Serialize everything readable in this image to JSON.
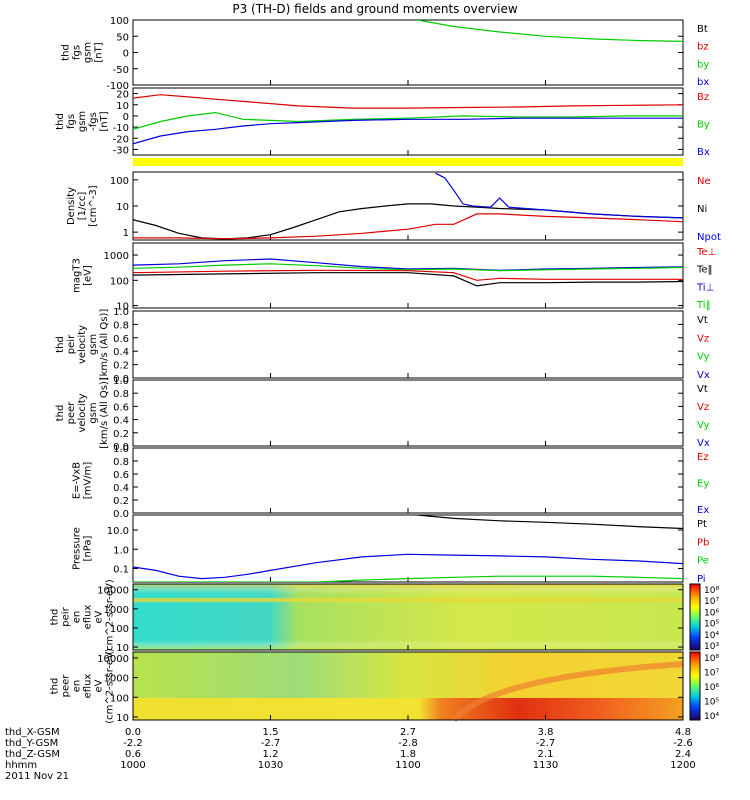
{
  "title": "P3 (TH-D) fields and ground moments overview",
  "date_label": "2011 Nov 21",
  "colorbar_tick_labels": [
    "10⁸",
    "10⁷",
    "10⁶",
    "10⁵",
    "10⁴",
    "10³"
  ],
  "colorbar2_tick_labels": [
    "10⁸",
    "10⁷",
    "10⁶",
    "10⁵",
    "10⁴"
  ],
  "orbit_rows": [
    {
      "label": "thd_X-GSM",
      "values": [
        "0.0",
        "1.5",
        "2.7",
        "3.8",
        "4.8"
      ]
    },
    {
      "label": "thd_Y-GSM",
      "values": [
        "-2.2",
        "-2.7",
        "-2.8",
        "-2.7",
        "-2.6"
      ]
    },
    {
      "label": "thd_Z-GSM",
      "values": [
        "0.6",
        "1.2",
        "1.8",
        "2.1",
        "2.4"
      ]
    },
    {
      "label": "hhmm",
      "values": [
        "1000",
        "1030",
        "1100",
        "1130",
        "1200"
      ]
    }
  ],
  "chart_data": [
    {
      "type": "line",
      "id": "fgs",
      "ylabel_lines": [
        "thd",
        "fgs",
        "gsm",
        "[nT]"
      ],
      "ylim": [
        -100,
        100
      ],
      "yscale": "linear",
      "tick_labels": [
        "100",
        "50",
        "0",
        "-50",
        "-100"
      ],
      "tick_values": [
        100,
        50,
        0,
        -50,
        -100
      ],
      "legend": [
        {
          "name": "Bt",
          "color": "#000000"
        },
        {
          "name": "bz",
          "color": "#dd0000"
        },
        {
          "name": "by",
          "color": "#00cc00"
        },
        {
          "name": "bx",
          "color": "#0000dd"
        }
      ],
      "series": [
        {
          "name": "by",
          "color": "#00cc00",
          "x": [
            62,
            70,
            80,
            90,
            100,
            110,
            120
          ],
          "y": [
            100,
            80,
            63,
            50,
            42,
            37,
            34
          ]
        }
      ]
    },
    {
      "type": "line",
      "id": "fgs-zoom",
      "ylabel_lines": [
        "thd",
        "fgs",
        "gsm",
        "-fgs",
        "[nT]"
      ],
      "ylim": [
        -35,
        25
      ],
      "yscale": "linear",
      "tick_labels": [
        "20",
        "10",
        "0",
        "-10",
        "-20",
        "-30"
      ],
      "tick_values": [
        20,
        10,
        0,
        -10,
        -20,
        -30
      ],
      "legend": [
        {
          "name": "Bz",
          "color": "#dd0000"
        },
        {
          "name": "By",
          "color": "#00cc00"
        },
        {
          "name": "Bx",
          "color": "#0000dd"
        }
      ],
      "series": [
        {
          "name": "Bz",
          "color": "#dd0000",
          "x": [
            0,
            6,
            12,
            18,
            24,
            30,
            36,
            48,
            60,
            72,
            84,
            96,
            108,
            120
          ],
          "y": [
            16,
            19,
            17,
            15,
            13,
            11,
            9,
            7,
            7,
            7.5,
            8,
            9,
            9.5,
            10
          ]
        },
        {
          "name": "By",
          "color": "#00cc00",
          "x": [
            0,
            6,
            12,
            18,
            24,
            30,
            36,
            48,
            60,
            72,
            84,
            96,
            108,
            120
          ],
          "y": [
            -12,
            -5,
            0,
            3,
            -3,
            -4,
            -5,
            -3,
            -2,
            0,
            -1,
            -1,
            0,
            0
          ]
        },
        {
          "name": "Bx",
          "color": "#0000dd",
          "x": [
            0,
            6,
            12,
            18,
            24,
            30,
            36,
            48,
            60,
            72,
            84,
            96,
            108,
            120
          ],
          "y": [
            -25,
            -18,
            -14,
            -12,
            -9,
            -7,
            -6,
            -4,
            -3,
            -3,
            -2,
            -2,
            -2,
            -2
          ]
        }
      ]
    },
    {
      "type": "line",
      "id": "density",
      "ylabel_lines": [
        "Density",
        "[1/cc]",
        "[cm^-3]"
      ],
      "ylim": [
        0.5,
        200
      ],
      "yscale": "log",
      "tick_labels": [
        "100",
        "10",
        "1"
      ],
      "tick_values": [
        100,
        10,
        1
      ],
      "legend": [
        {
          "name": "Ne",
          "color": "#dd0000"
        },
        {
          "name": "Ni",
          "color": "#000000"
        },
        {
          "name": "Npot",
          "color": "#0000dd"
        }
      ],
      "series": [
        {
          "name": "Ni",
          "color": "#000000",
          "x": [
            0,
            5,
            10,
            15,
            20,
            25,
            30,
            35,
            40,
            45,
            50,
            55,
            60,
            65,
            70,
            75,
            80,
            90,
            100,
            110,
            120
          ],
          "y": [
            3,
            1.8,
            0.9,
            0.6,
            0.55,
            0.6,
            0.8,
            1.5,
            3,
            6,
            8,
            10,
            12,
            12,
            10,
            9,
            8,
            7,
            5,
            4,
            3.5
          ]
        },
        {
          "name": "Ne",
          "color": "#dd0000",
          "x": [
            0,
            10,
            20,
            30,
            40,
            50,
            60,
            66,
            70,
            75,
            80,
            90,
            100,
            110,
            120
          ],
          "y": [
            0.6,
            0.6,
            0.55,
            0.6,
            0.7,
            0.9,
            1.3,
            2,
            2,
            5,
            5,
            4,
            3.5,
            3,
            2.5
          ]
        },
        {
          "name": "Npot",
          "color": "#0000dd",
          "x": [
            66,
            68,
            70,
            72,
            74,
            78,
            80,
            82,
            90,
            100,
            110,
            120
          ],
          "y": [
            180,
            120,
            40,
            12,
            10,
            9,
            20,
            9,
            7,
            5,
            4,
            3.5
          ]
        }
      ]
    },
    {
      "type": "line",
      "id": "temperature",
      "ylabel_lines": [
        "magT3",
        "[eV]"
      ],
      "ylim": [
        8,
        3000
      ],
      "yscale": "log",
      "tick_labels": [
        "1000",
        "100",
        "10"
      ],
      "tick_values": [
        1000,
        100,
        10
      ],
      "legend": [
        {
          "name": "Te⊥",
          "color": "#dd0000"
        },
        {
          "name": "Te‖",
          "color": "#000000"
        },
        {
          "name": "Ti⊥",
          "color": "#0000dd"
        },
        {
          "name": "Ti‖",
          "color": "#00cc00"
        }
      ],
      "series": [
        {
          "name": "Ti⊥",
          "color": "#0000dd",
          "x": [
            0,
            10,
            20,
            30,
            40,
            50,
            60,
            70,
            80,
            90,
            100,
            110,
            120
          ],
          "y": [
            400,
            450,
            600,
            700,
            500,
            350,
            280,
            300,
            250,
            280,
            300,
            320,
            340
          ]
        },
        {
          "name": "Ti‖",
          "color": "#00cc00",
          "x": [
            0,
            10,
            20,
            30,
            40,
            50,
            60,
            70,
            80,
            90,
            100,
            110,
            120
          ],
          "y": [
            300,
            330,
            400,
            450,
            380,
            300,
            260,
            280,
            240,
            260,
            280,
            300,
            320
          ]
        },
        {
          "name": "Te⊥",
          "color": "#dd0000",
          "x": [
            0,
            20,
            40,
            60,
            70,
            75,
            80,
            90,
            100,
            110,
            120
          ],
          "y": [
            200,
            230,
            250,
            240,
            200,
            100,
            120,
            110,
            110,
            110,
            110
          ]
        },
        {
          "name": "Te‖",
          "color": "#000000",
          "x": [
            0,
            20,
            40,
            60,
            70,
            75,
            80,
            90,
            100,
            110,
            120
          ],
          "y": [
            160,
            180,
            200,
            200,
            150,
            60,
            80,
            80,
            85,
            85,
            90
          ]
        }
      ]
    },
    {
      "type": "line",
      "id": "peir-velocity",
      "ylabel_lines": [
        "thd",
        "peir",
        "velocity",
        "gsm",
        "[km/s (All Qs)]"
      ],
      "ylim": [
        0,
        1
      ],
      "yscale": "linear",
      "tick_labels": [
        "1.0",
        "0.8",
        "0.6",
        "0.4",
        "0.2",
        "0.0"
      ],
      "tick_values": [
        1,
        0.8,
        0.6,
        0.4,
        0.2,
        0
      ],
      "legend": [
        {
          "name": "Vt",
          "color": "#000000"
        },
        {
          "name": "Vz",
          "color": "#dd0000"
        },
        {
          "name": "Vy",
          "color": "#00cc00"
        },
        {
          "name": "Vx",
          "color": "#0000dd"
        }
      ],
      "series": []
    },
    {
      "type": "line",
      "id": "peer-velocity",
      "ylabel_lines": [
        "thd",
        "peer",
        "velocity",
        "gsm",
        "[km/s (All Qs)]"
      ],
      "ylim": [
        0,
        1
      ],
      "yscale": "linear",
      "tick_labels": [
        "1.0",
        "0.8",
        "0.6",
        "0.4",
        "0.2",
        "0.0"
      ],
      "tick_values": [
        1,
        0.8,
        0.6,
        0.4,
        0.2,
        0
      ],
      "legend": [
        {
          "name": "Vt",
          "color": "#000000"
        },
        {
          "name": "Vz",
          "color": "#dd0000"
        },
        {
          "name": "Vy",
          "color": "#00cc00"
        },
        {
          "name": "Vx",
          "color": "#0000dd"
        }
      ],
      "series": []
    },
    {
      "type": "line",
      "id": "efield",
      "ylabel_lines": [
        "E=-VxB",
        "[mV/m]"
      ],
      "ylim": [
        0,
        1
      ],
      "yscale": "linear",
      "tick_labels": [
        "1.0",
        "0.8",
        "0.6",
        "0.4",
        "0.2",
        "0.0"
      ],
      "tick_values": [
        1,
        0.8,
        0.6,
        0.4,
        0.2,
        0
      ],
      "legend": [
        {
          "name": "Ez",
          "color": "#dd0000"
        },
        {
          "name": "Ey",
          "color": "#00cc00"
        },
        {
          "name": "Ex",
          "color": "#0000dd"
        }
      ],
      "series": []
    },
    {
      "type": "line",
      "id": "pressure",
      "ylabel_lines": [
        "Pressure",
        "[nPa]"
      ],
      "ylim": [
        0.02,
        60
      ],
      "yscale": "log",
      "tick_labels": [
        "10.0",
        "1.0",
        "0.1"
      ],
      "tick_values": [
        10,
        1,
        0.1
      ],
      "legend": [
        {
          "name": "Pt",
          "color": "#000000"
        },
        {
          "name": "Pb",
          "color": "#dd0000"
        },
        {
          "name": "Pe",
          "color": "#00cc00"
        },
        {
          "name": "Pi",
          "color": "#0000dd"
        }
      ],
      "series": [
        {
          "name": "Pt",
          "color": "#000000",
          "x": [
            62,
            70,
            80,
            90,
            100,
            110,
            120
          ],
          "y": [
            60,
            40,
            30,
            25,
            20,
            15,
            12
          ]
        },
        {
          "name": "Pi",
          "color": "#0000dd",
          "x": [
            0,
            5,
            10,
            15,
            20,
            25,
            30,
            40,
            50,
            60,
            70,
            80,
            90,
            100,
            110,
            120
          ],
          "y": [
            0.12,
            0.08,
            0.04,
            0.03,
            0.035,
            0.05,
            0.08,
            0.2,
            0.4,
            0.55,
            0.5,
            0.45,
            0.4,
            0.3,
            0.25,
            0.18
          ]
        },
        {
          "name": "Pe",
          "color": "#00cc00",
          "x": [
            0,
            20,
            40,
            50,
            60,
            70,
            80,
            90,
            100,
            110,
            120
          ],
          "y": [
            0.02,
            0.02,
            0.02,
            0.025,
            0.03,
            0.035,
            0.04,
            0.04,
            0.04,
            0.035,
            0.03
          ]
        }
      ]
    },
    {
      "type": "heatmap",
      "id": "peir-spectrogram",
      "ylabel_lines": [
        "thd",
        "peir",
        "en",
        "eflux",
        "eV",
        "(cm^2-s-sr-eV)"
      ],
      "ylim": [
        7,
        20000
      ],
      "yscale": "log",
      "tick_labels": [
        "10000",
        "1000",
        "100",
        "10"
      ],
      "tick_values": [
        10000,
        1000,
        100,
        10
      ],
      "series": []
    },
    {
      "type": "heatmap",
      "id": "peer-spectrogram",
      "ylabel_lines": [
        "thd",
        "peer",
        "en",
        "eflux",
        "eV",
        "(cm^2-s-sr-eV)"
      ],
      "ylim": [
        7,
        20000
      ],
      "yscale": "log",
      "tick_labels": [
        "10000",
        "1000",
        "100",
        "10"
      ],
      "tick_values": [
        10000,
        1000,
        100,
        10
      ],
      "series": []
    }
  ]
}
